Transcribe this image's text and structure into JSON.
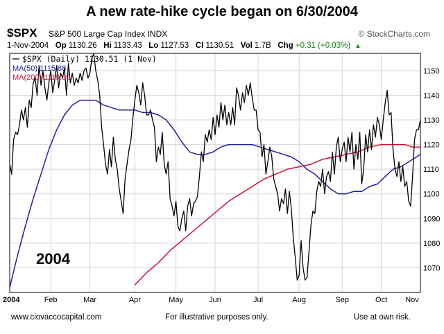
{
  "page_title": "A new rate-hike cycle began on 6/30/2004",
  "header": {
    "symbol": "$SPX",
    "description": "S&P 500 Large Cap Index",
    "exchange": "INDX",
    "brand": "© StockCharts.com"
  },
  "quote": {
    "date": "1-Nov-2004",
    "open_label": "Op",
    "open": "1130.26",
    "high_label": "Hi",
    "high": "1133.43",
    "low_label": "Lo",
    "low": "1127.53",
    "close_label": "Cl",
    "close": "1130.51",
    "vol_label": "Vol",
    "vol": "1.7B",
    "chg_label": "Chg",
    "chg": "+0.31 (+0.03%)",
    "chg_arrow": "▲"
  },
  "legend": {
    "price": "$SPX (Daily) 1130.51 (1 Nov)",
    "ma50": "MA(50) 1115.88",
    "ma200": "MA(200) 1119.39"
  },
  "colors": {
    "price": "#000000",
    "ma50": "#1f1fa0",
    "ma200": "#d0103a",
    "grid": "#d6d6d6",
    "chg": "#0a8a0a"
  },
  "year_annotation": "2004",
  "footer": {
    "left": "www.ciovaccocapital.com",
    "center": "For illustrative purposes only.",
    "right": "Use at own risk."
  },
  "chart_data": {
    "type": "line",
    "title": "A new rate-hike cycle began on 6/30/2004",
    "ylim": [
      1060,
      1157
    ],
    "y_ticks": [
      1070,
      1080,
      1090,
      1100,
      1110,
      1120,
      1130,
      1140,
      1150
    ],
    "x_range_days": [
      0,
      210
    ],
    "x_ticks": [
      {
        "day": 0,
        "label": "2004"
      },
      {
        "day": 21,
        "label": "Feb"
      },
      {
        "day": 41,
        "label": "Mar"
      },
      {
        "day": 64,
        "label": "Apr"
      },
      {
        "day": 85,
        "label": "May"
      },
      {
        "day": 105,
        "label": "Jun"
      },
      {
        "day": 127,
        "label": "Jul"
      },
      {
        "day": 148,
        "label": "Aug"
      },
      {
        "day": 170,
        "label": "Sep"
      },
      {
        "day": 190,
        "label": "Oct"
      },
      {
        "day": 210,
        "label": "Nov"
      }
    ],
    "series": [
      {
        "name": "$SPX (Daily)",
        "key": "price",
        "points": [
          [
            0,
            1112
          ],
          [
            1,
            1108
          ],
          [
            2,
            1122
          ],
          [
            3,
            1125
          ],
          [
            4,
            1124
          ],
          [
            5,
            1128
          ],
          [
            6,
            1134
          ],
          [
            7,
            1130
          ],
          [
            8,
            1135
          ],
          [
            9,
            1127
          ],
          [
            10,
            1138
          ],
          [
            11,
            1135
          ],
          [
            12,
            1145
          ],
          [
            13,
            1147
          ],
          [
            14,
            1140
          ],
          [
            15,
            1152
          ],
          [
            16,
            1144
          ],
          [
            17,
            1150
          ],
          [
            18,
            1143
          ],
          [
            19,
            1138
          ],
          [
            20,
            1145
          ],
          [
            21,
            1150
          ],
          [
            22,
            1141
          ],
          [
            23,
            1146
          ],
          [
            24,
            1152
          ],
          [
            25,
            1143
          ],
          [
            26,
            1149
          ],
          [
            27,
            1147
          ],
          [
            28,
            1151
          ],
          [
            29,
            1140
          ],
          [
            30,
            1153
          ],
          [
            31,
            1145
          ],
          [
            32,
            1149
          ],
          [
            33,
            1144
          ],
          [
            34,
            1147
          ],
          [
            35,
            1145
          ],
          [
            36,
            1149
          ],
          [
            37,
            1146
          ],
          [
            38,
            1150
          ],
          [
            39,
            1151
          ],
          [
            40,
            1147
          ],
          [
            41,
            1149
          ],
          [
            42,
            1155
          ],
          [
            43,
            1157
          ],
          [
            44,
            1150
          ],
          [
            45,
            1146
          ],
          [
            46,
            1140
          ],
          [
            47,
            1127
          ],
          [
            48,
            1120
          ],
          [
            49,
            1112
          ],
          [
            50,
            1108
          ],
          [
            51,
            1118
          ],
          [
            52,
            1111
          ],
          [
            53,
            1123
          ],
          [
            54,
            1114
          ],
          [
            55,
            1110
          ],
          [
            56,
            1102
          ],
          [
            57,
            1097
          ],
          [
            58,
            1092
          ],
          [
            59,
            1106
          ],
          [
            60,
            1112
          ],
          [
            61,
            1118
          ],
          [
            62,
            1122
          ],
          [
            63,
            1131
          ],
          [
            64,
            1138
          ],
          [
            65,
            1144
          ],
          [
            66,
            1141
          ],
          [
            67,
            1136
          ],
          [
            68,
            1145
          ],
          [
            69,
            1140
          ],
          [
            70,
            1132
          ],
          [
            71,
            1132
          ],
          [
            72,
            1134
          ],
          [
            73,
            1130
          ],
          [
            74,
            1127
          ],
          [
            75,
            1113
          ],
          [
            76,
            1119
          ],
          [
            77,
            1116
          ],
          [
            78,
            1125
          ],
          [
            79,
            1112
          ],
          [
            80,
            1108
          ],
          [
            81,
            1113
          ],
          [
            82,
            1098
          ],
          [
            83,
            1095
          ],
          [
            84,
            1091
          ],
          [
            85,
            1097
          ],
          [
            86,
            1087
          ],
          [
            87,
            1085
          ],
          [
            88,
            1090
          ],
          [
            89,
            1093
          ],
          [
            90,
            1085
          ],
          [
            91,
            1095
          ],
          [
            92,
            1098
          ],
          [
            93,
            1091
          ],
          [
            94,
            1096
          ],
          [
            95,
            1097
          ],
          [
            96,
            1099
          ],
          [
            97,
            1107
          ],
          [
            98,
            1117
          ],
          [
            99,
            1113
          ],
          [
            100,
            1124
          ],
          [
            101,
            1121
          ],
          [
            102,
            1126
          ],
          [
            103,
            1122
          ],
          [
            104,
            1131
          ],
          [
            105,
            1124
          ],
          [
            106,
            1132
          ],
          [
            107,
            1127
          ],
          [
            108,
            1137
          ],
          [
            109,
            1130
          ],
          [
            110,
            1136
          ],
          [
            111,
            1128
          ],
          [
            112,
            1133
          ],
          [
            113,
            1128
          ],
          [
            114,
            1135
          ],
          [
            115,
            1128
          ],
          [
            116,
            1143
          ],
          [
            117,
            1140
          ],
          [
            118,
            1134
          ],
          [
            119,
            1141
          ],
          [
            120,
            1137
          ],
          [
            121,
            1144
          ],
          [
            122,
            1140
          ],
          [
            123,
            1145
          ],
          [
            124,
            1139
          ],
          [
            125,
            1134
          ],
          [
            126,
            1134
          ],
          [
            127,
            1126
          ],
          [
            128,
            1125
          ],
          [
            129,
            1115
          ],
          [
            130,
            1120
          ],
          [
            131,
            1108
          ],
          [
            132,
            1113
          ],
          [
            133,
            1119
          ],
          [
            134,
            1115
          ],
          [
            135,
            1106
          ],
          [
            136,
            1103
          ],
          [
            137,
            1100
          ],
          [
            138,
            1093
          ],
          [
            139,
            1098
          ],
          [
            140,
            1096
          ],
          [
            141,
            1102
          ],
          [
            142,
            1092
          ],
          [
            143,
            1101
          ],
          [
            144,
            1094
          ],
          [
            145,
            1082
          ],
          [
            146,
            1074
          ],
          [
            147,
            1065
          ],
          [
            148,
            1067
          ],
          [
            149,
            1081
          ],
          [
            150,
            1070
          ],
          [
            151,
            1065
          ],
          [
            152,
            1066
          ],
          [
            153,
            1076
          ],
          [
            154,
            1087
          ],
          [
            155,
            1093
          ],
          [
            156,
            1092
          ],
          [
            157,
            1101
          ],
          [
            158,
            1105
          ],
          [
            159,
            1103
          ],
          [
            160,
            1110
          ],
          [
            161,
            1100
          ],
          [
            162,
            1107
          ],
          [
            163,
            1109
          ],
          [
            164,
            1105
          ],
          [
            165,
            1117
          ],
          [
            166,
            1108
          ],
          [
            167,
            1119
          ],
          [
            168,
            1123
          ],
          [
            169,
            1113
          ],
          [
            170,
            1118
          ],
          [
            171,
            1121
          ],
          [
            172,
            1113
          ],
          [
            173,
            1123
          ],
          [
            174,
            1117
          ],
          [
            175,
            1125
          ],
          [
            176,
            1110
          ],
          [
            177,
            1120
          ],
          [
            178,
            1114
          ],
          [
            179,
            1125
          ],
          [
            180,
            1104
          ],
          [
            181,
            1110
          ],
          [
            182,
            1124
          ],
          [
            183,
            1117
          ],
          [
            184,
            1126
          ],
          [
            185,
            1118
          ],
          [
            186,
            1128
          ],
          [
            187,
            1123
          ],
          [
            188,
            1131
          ],
          [
            189,
            1128
          ],
          [
            190,
            1122
          ],
          [
            191,
            1130
          ],
          [
            192,
            1137
          ],
          [
            193,
            1142
          ],
          [
            194,
            1132
          ],
          [
            195,
            1133
          ],
          [
            196,
            1118
          ],
          [
            197,
            1110
          ],
          [
            198,
            1107
          ],
          [
            199,
            1113
          ],
          [
            200,
            1105
          ],
          [
            201,
            1111
          ],
          [
            202,
            1103
          ],
          [
            203,
            1105
          ],
          [
            204,
            1097
          ],
          [
            205,
            1095
          ],
          [
            206,
            1107
          ],
          [
            207,
            1122
          ],
          [
            208,
            1126
          ],
          [
            209,
            1126
          ],
          [
            210,
            1130
          ]
        ]
      },
      {
        "name": "MA(50)",
        "key": "ma50",
        "points": [
          [
            0,
            1062
          ],
          [
            4,
            1075
          ],
          [
            8,
            1087
          ],
          [
            12,
            1098
          ],
          [
            16,
            1108
          ],
          [
            20,
            1118
          ],
          [
            24,
            1126
          ],
          [
            28,
            1132
          ],
          [
            32,
            1136
          ],
          [
            36,
            1138
          ],
          [
            40,
            1138
          ],
          [
            44,
            1138
          ],
          [
            48,
            1136
          ],
          [
            52,
            1135
          ],
          [
            56,
            1134
          ],
          [
            60,
            1134
          ],
          [
            64,
            1134
          ],
          [
            68,
            1133
          ],
          [
            72,
            1133
          ],
          [
            76,
            1132
          ],
          [
            80,
            1130
          ],
          [
            84,
            1126
          ],
          [
            88,
            1121
          ],
          [
            92,
            1117
          ],
          [
            96,
            1116
          ],
          [
            100,
            1116
          ],
          [
            104,
            1117
          ],
          [
            108,
            1119
          ],
          [
            112,
            1120
          ],
          [
            116,
            1120
          ],
          [
            120,
            1120
          ],
          [
            124,
            1120
          ],
          [
            128,
            1119
          ],
          [
            132,
            1118
          ],
          [
            136,
            1117
          ],
          [
            140,
            1116
          ],
          [
            144,
            1115
          ],
          [
            148,
            1113
          ],
          [
            152,
            1110
          ],
          [
            156,
            1108
          ],
          [
            160,
            1105
          ],
          [
            164,
            1102
          ],
          [
            168,
            1100
          ],
          [
            172,
            1100
          ],
          [
            176,
            1101
          ],
          [
            180,
            1101
          ],
          [
            184,
            1103
          ],
          [
            188,
            1104
          ],
          [
            192,
            1107
          ],
          [
            196,
            1110
          ],
          [
            200,
            1111
          ],
          [
            204,
            1113
          ],
          [
            208,
            1115
          ],
          [
            210,
            1116
          ]
        ]
      },
      {
        "name": "MA(200)",
        "key": "ma200",
        "points": [
          [
            64,
            1063
          ],
          [
            70,
            1068
          ],
          [
            76,
            1072
          ],
          [
            82,
            1077
          ],
          [
            88,
            1081
          ],
          [
            94,
            1085
          ],
          [
            100,
            1089
          ],
          [
            106,
            1093
          ],
          [
            112,
            1097
          ],
          [
            118,
            1100
          ],
          [
            124,
            1103
          ],
          [
            130,
            1106
          ],
          [
            136,
            1108
          ],
          [
            142,
            1110
          ],
          [
            148,
            1111
          ],
          [
            154,
            1112
          ],
          [
            160,
            1114
          ],
          [
            166,
            1115
          ],
          [
            172,
            1116
          ],
          [
            178,
            1117
          ],
          [
            184,
            1119
          ],
          [
            190,
            1120
          ],
          [
            196,
            1120
          ],
          [
            202,
            1120
          ],
          [
            206,
            1119
          ],
          [
            210,
            1119
          ]
        ]
      }
    ]
  }
}
